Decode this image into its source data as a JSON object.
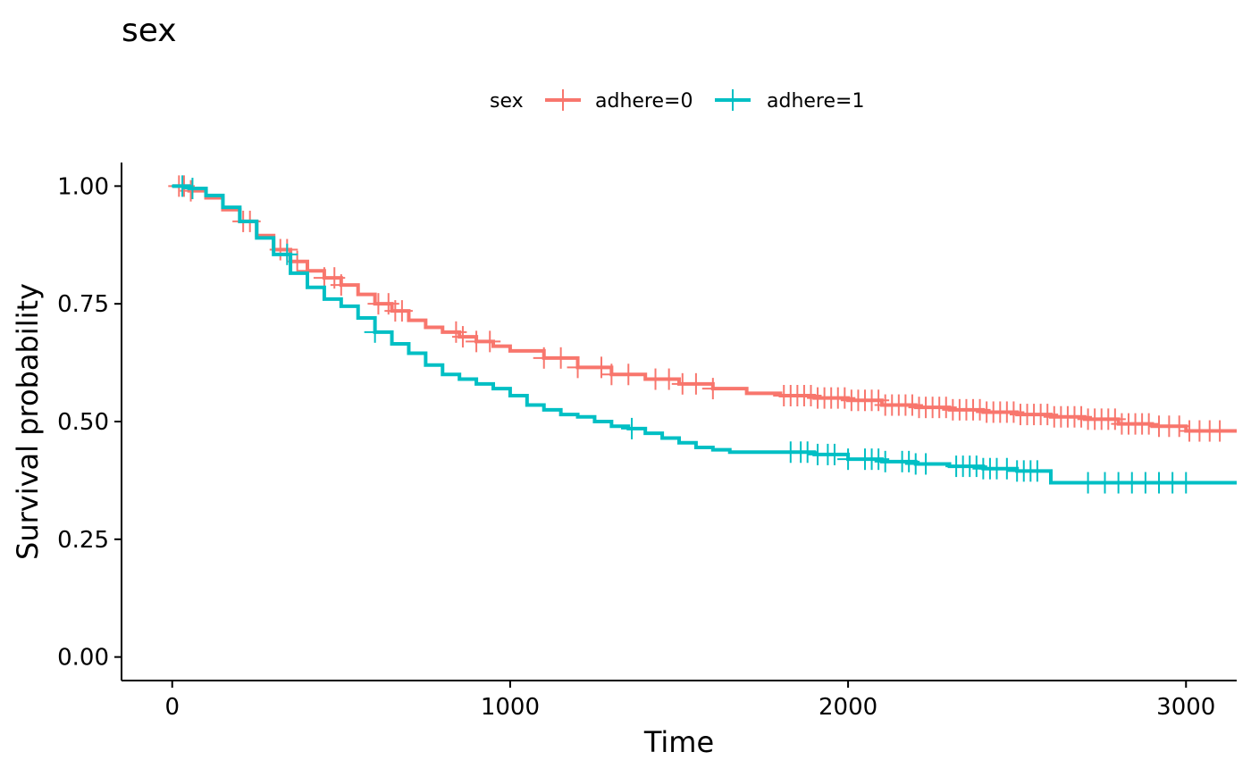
{
  "chart_data": {
    "type": "line",
    "title": "sex",
    "xlabel": "Time",
    "ylabel": "Survival probability",
    "xlim": [
      -150,
      3150
    ],
    "ylim": [
      -0.05,
      1.05
    ],
    "x_ticks": [
      0,
      1000,
      2000,
      3000
    ],
    "x_tick_labels": [
      "0",
      "1000",
      "2000",
      "3000"
    ],
    "y_ticks": [
      0,
      0.25,
      0.5,
      0.75,
      1
    ],
    "y_tick_labels": [
      "0.00",
      "0.25",
      "0.50",
      "0.75",
      "1.00"
    ],
    "grid": false,
    "legend": {
      "title": "sex",
      "position": "top",
      "entries": [
        "adhere=0",
        "adhere=1"
      ]
    },
    "series": [
      {
        "name": "adhere=0",
        "color": "#F8766D",
        "x": [
          0,
          50,
          100,
          150,
          200,
          250,
          300,
          350,
          400,
          450,
          500,
          550,
          600,
          650,
          700,
          750,
          800,
          850,
          900,
          950,
          1000,
          1100,
          1200,
          1300,
          1400,
          1500,
          1600,
          1700,
          1800,
          1900,
          2000,
          2100,
          2200,
          2300,
          2400,
          2500,
          2600,
          2700,
          2800,
          2900,
          3000,
          3150
        ],
        "y": [
          1.0,
          0.99,
          0.975,
          0.95,
          0.925,
          0.895,
          0.865,
          0.84,
          0.82,
          0.805,
          0.79,
          0.77,
          0.75,
          0.735,
          0.715,
          0.7,
          0.69,
          0.68,
          0.67,
          0.66,
          0.65,
          0.635,
          0.615,
          0.6,
          0.59,
          0.58,
          0.57,
          0.56,
          0.555,
          0.55,
          0.545,
          0.535,
          0.53,
          0.525,
          0.52,
          0.515,
          0.51,
          0.505,
          0.495,
          0.49,
          0.48,
          0.48
        ],
        "censor_x": [
          20,
          35,
          55,
          210,
          230,
          320,
          340,
          370,
          400,
          450,
          480,
          500,
          610,
          640,
          660,
          680,
          840,
          860,
          900,
          940,
          1100,
          1150,
          1200,
          1270,
          1300,
          1350,
          1430,
          1470,
          1510,
          1550,
          1600,
          1810,
          1830,
          1850,
          1870,
          1890,
          1910,
          1930,
          1950,
          1970,
          1990,
          2010,
          2030,
          2050,
          2070,
          2090,
          2110,
          2130,
          2150,
          2170,
          2190,
          2210,
          2230,
          2250,
          2270,
          2290,
          2310,
          2330,
          2350,
          2370,
          2390,
          2410,
          2430,
          2450,
          2470,
          2490,
          2510,
          2530,
          2550,
          2570,
          2590,
          2610,
          2630,
          2650,
          2670,
          2690,
          2710,
          2730,
          2750,
          2770,
          2790,
          2810,
          2830,
          2850,
          2870,
          2890,
          2920,
          2950,
          2980,
          3010,
          3040,
          3070,
          3100
        ]
      },
      {
        "name": "adhere=1",
        "color": "#00BFC4",
        "x": [
          0,
          50,
          100,
          150,
          200,
          250,
          300,
          350,
          400,
          450,
          500,
          550,
          600,
          650,
          700,
          750,
          800,
          850,
          900,
          950,
          1000,
          1050,
          1100,
          1150,
          1200,
          1250,
          1300,
          1350,
          1400,
          1450,
          1500,
          1550,
          1600,
          1650,
          1700,
          1800,
          1900,
          2000,
          2100,
          2200,
          2300,
          2400,
          2500,
          2600,
          2700,
          2800,
          2900,
          3000,
          3150
        ],
        "y": [
          1.0,
          0.995,
          0.98,
          0.955,
          0.925,
          0.89,
          0.855,
          0.815,
          0.785,
          0.76,
          0.745,
          0.72,
          0.69,
          0.665,
          0.645,
          0.62,
          0.6,
          0.59,
          0.58,
          0.57,
          0.555,
          0.535,
          0.525,
          0.515,
          0.51,
          0.5,
          0.49,
          0.485,
          0.475,
          0.465,
          0.455,
          0.445,
          0.44,
          0.435,
          0.435,
          0.435,
          0.43,
          0.42,
          0.415,
          0.41,
          0.405,
          0.4,
          0.395,
          0.37,
          0.37,
          0.37,
          0.37,
          0.37,
          0.37
        ],
        "censor_x": [
          30,
          60,
          340,
          600,
          1360,
          1830,
          1860,
          1880,
          1910,
          1940,
          1960,
          2000,
          2050,
          2070,
          2090,
          2110,
          2160,
          2180,
          2200,
          2230,
          2320,
          2340,
          2360,
          2380,
          2400,
          2420,
          2440,
          2470,
          2500,
          2520,
          2540,
          2560,
          2710,
          2760,
          2800,
          2840,
          2880,
          2920,
          2960,
          3000
        ]
      }
    ]
  }
}
